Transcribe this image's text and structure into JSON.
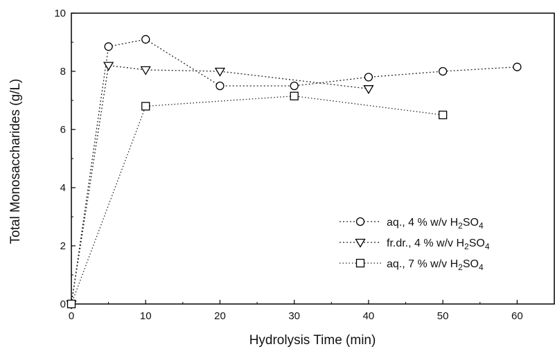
{
  "chart_data": {
    "type": "line",
    "xlabel": "Hydrolysis Time (min)",
    "ylabel": "Total Monosaccharides (g/L)",
    "xlim": [
      0,
      65
    ],
    "ylim": [
      0,
      10
    ],
    "xticks": [
      0,
      10,
      20,
      30,
      40,
      50,
      60
    ],
    "yticks": [
      0,
      2,
      4,
      6,
      8,
      10
    ],
    "grid": false,
    "legend_position": "lower-right",
    "series": [
      {
        "name": "aq., 4 % w/v H2SO4",
        "legend": {
          "pre": "aq., 4 % w/v H",
          "sub1": "2",
          "mid": "SO",
          "sub2": "4"
        },
        "marker": "circle",
        "x": [
          0,
          5,
          10,
          20,
          30,
          40,
          50,
          60
        ],
        "y": [
          0,
          8.85,
          9.1,
          7.5,
          7.5,
          7.8,
          8.0,
          8.15
        ]
      },
      {
        "name": "fr.dr., 4 % w/v H2SO4",
        "legend": {
          "pre": "fr.dr., 4 % w/v H",
          "sub1": "2",
          "mid": "SO",
          "sub2": "4"
        },
        "marker": "triangle-down",
        "x": [
          0,
          5,
          10,
          20,
          40
        ],
        "y": [
          0,
          8.2,
          8.05,
          8.0,
          7.4
        ]
      },
      {
        "name": "aq., 7 % w/v H2SO4",
        "legend": {
          "pre": "aq., 7 % w/v H",
          "sub1": "2",
          "mid": "SO",
          "sub2": "4"
        },
        "marker": "square",
        "x": [
          0,
          10,
          30,
          50
        ],
        "y": [
          0,
          6.8,
          7.15,
          6.5
        ]
      }
    ]
  }
}
